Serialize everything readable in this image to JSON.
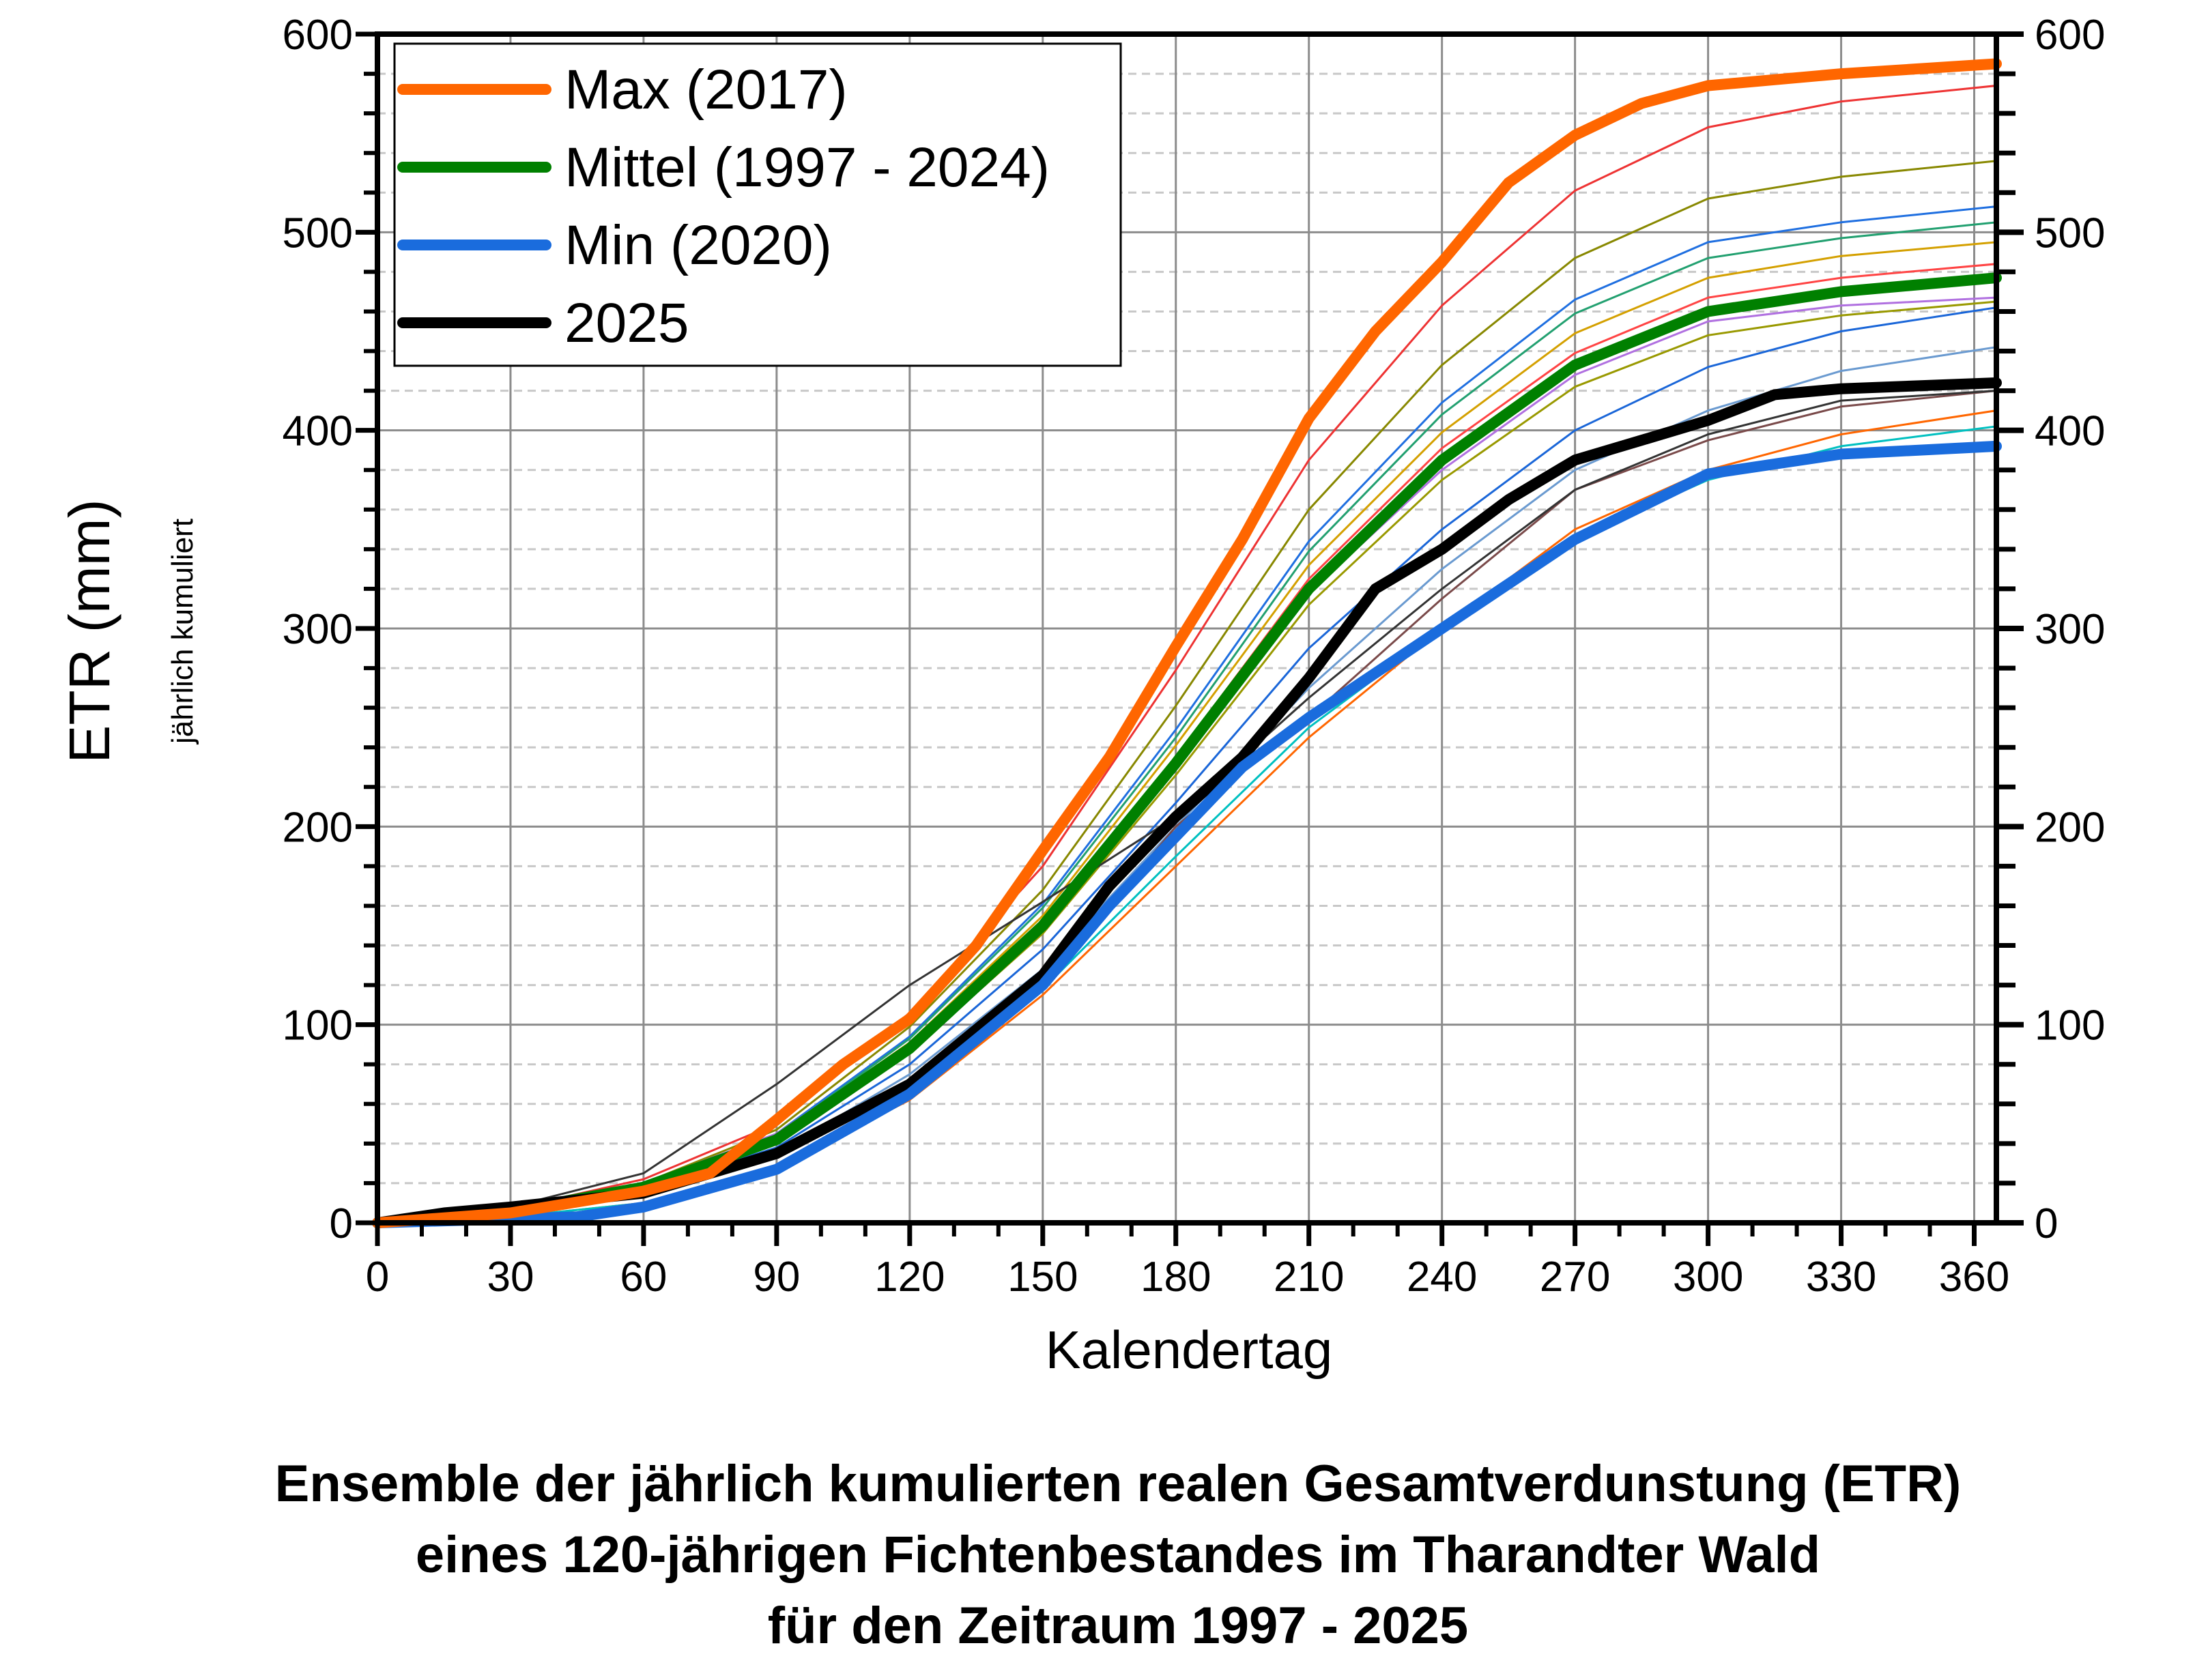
{
  "chart_data": {
    "type": "line",
    "title_lines": [
      "Ensemble der jährlich kumulierten realen Gesamtverdunstung (ETR)",
      "eines 120-jährigen Fichtenbestandes im Tharandter Wald",
      "für den Zeitraum 1997 - 2025"
    ],
    "xlabel": "Kalendertag",
    "ylabel": "ETR (mm)",
    "ylabel_sub": "jährlich kumuliert",
    "xlim": [
      0,
      365
    ],
    "ylim": [
      0,
      600
    ],
    "xticks": [
      "0",
      "30",
      "60",
      "90",
      "120",
      "150",
      "180",
      "210",
      "240",
      "270",
      "300",
      "330",
      "360"
    ],
    "yticks": [
      "0",
      "100",
      "200",
      "300",
      "400",
      "500",
      "600"
    ],
    "grid": true,
    "legend_position": "top-left",
    "x": [
      0,
      30,
      60,
      90,
      120,
      150,
      180,
      210,
      240,
      270,
      300,
      330,
      365
    ],
    "series": [
      {
        "name": "Max (2017)",
        "color": "#ff6600",
        "legend": true,
        "width": "thick",
        "x": [
          0,
          30,
          60,
          75,
          90,
          105,
          120,
          135,
          150,
          165,
          180,
          195,
          210,
          225,
          240,
          255,
          270,
          285,
          300,
          330,
          365
        ],
        "values": [
          0,
          5,
          16,
          25,
          52,
          80,
          103,
          140,
          188,
          235,
          291,
          345,
          406,
          450,
          485,
          525,
          549,
          565,
          574,
          580,
          585
        ]
      },
      {
        "name": "Mittel (1997 - 2024)",
        "color": "#008000",
        "legend": true,
        "width": "thick",
        "values": [
          0,
          6,
          18,
          42,
          88,
          150,
          232,
          320,
          385,
          433,
          460,
          470,
          477
        ]
      },
      {
        "name": "Min (2020)",
        "color": "#1a6cdd",
        "legend": true,
        "width": "thick",
        "x": [
          0,
          30,
          45,
          60,
          90,
          120,
          150,
          165,
          180,
          195,
          210,
          240,
          270,
          300,
          330,
          365
        ],
        "values": [
          0,
          2,
          3,
          8,
          27,
          65,
          120,
          160,
          195,
          230,
          255,
          300,
          345,
          378,
          388,
          392
        ]
      },
      {
        "name": "2025",
        "color": "#000000",
        "legend": true,
        "width": "thick",
        "x": [
          0,
          15,
          30,
          60,
          90,
          120,
          150,
          165,
          180,
          195,
          210,
          225,
          240,
          255,
          270,
          285,
          300,
          315,
          330,
          365
        ],
        "values": [
          0,
          5,
          8,
          15,
          35,
          70,
          125,
          170,
          205,
          235,
          275,
          320,
          340,
          365,
          385,
          395,
          405,
          418,
          421,
          424
        ]
      },
      {
        "name": "",
        "color": "#ee3333",
        "legend": false,
        "values": [
          0,
          7,
          22,
          50,
          106,
          180,
          279,
          385,
          463,
          521,
          553,
          566,
          574
        ]
      },
      {
        "name": "",
        "color": "#888800",
        "legend": false,
        "values": [
          0,
          7,
          20,
          47,
          99,
          168,
          261,
          360,
          433,
          487,
          517,
          528,
          536
        ]
      },
      {
        "name": "",
        "color": "#1f6fe0",
        "legend": false,
        "values": [
          0,
          6,
          19,
          45,
          94,
          161,
          249,
          344,
          414,
          466,
          495,
          505,
          513
        ]
      },
      {
        "name": "",
        "color": "#22a070",
        "legend": false,
        "values": [
          0,
          6,
          19,
          44,
          93,
          159,
          245,
          339,
          408,
          459,
          487,
          497,
          505
        ]
      },
      {
        "name": "",
        "color": "#d4a000",
        "legend": false,
        "values": [
          0,
          6,
          19,
          44,
          91,
          155,
          241,
          332,
          399,
          449,
          477,
          488,
          495
        ]
      },
      {
        "name": "",
        "color": "#ff4444",
        "legend": false,
        "values": [
          0,
          6,
          18,
          43,
          89,
          152,
          235,
          325,
          391,
          439,
          467,
          477,
          484
        ]
      },
      {
        "name": "",
        "color": "#b070e0",
        "legend": false,
        "values": [
          0,
          7,
          20,
          45,
          90,
          150,
          230,
          318,
          380,
          428,
          455,
          463,
          467
        ]
      },
      {
        "name": "",
        "color": "#999900",
        "legend": false,
        "values": [
          0,
          6,
          18,
          41,
          86,
          146,
          226,
          312,
          375,
          422,
          448,
          458,
          465
        ]
      },
      {
        "name": "",
        "color": "#1a66d8",
        "legend": false,
        "values": [
          0,
          6,
          17,
          38,
          80,
          138,
          212,
          290,
          350,
          400,
          432,
          450,
          462
        ]
      },
      {
        "name": "",
        "color": "#6a9ad0",
        "legend": false,
        "values": [
          0,
          5,
          15,
          35,
          75,
          128,
          200,
          270,
          330,
          380,
          410,
          430,
          442
        ]
      },
      {
        "name": "",
        "color": "#7a4a4a",
        "legend": false,
        "values": [
          0,
          5,
          14,
          33,
          70,
          120,
          200,
          255,
          315,
          370,
          395,
          412,
          420
        ]
      },
      {
        "name": "",
        "color": "#ff6600",
        "legend": false,
        "values": [
          0,
          3,
          10,
          28,
          62,
          115,
          180,
          245,
          300,
          350,
          380,
          398,
          410
        ]
      },
      {
        "name": "",
        "color": "#00c0c0",
        "legend": false,
        "values": [
          0,
          3,
          10,
          28,
          64,
          118,
          185,
          250,
          300,
          345,
          375,
          392,
          402
        ]
      },
      {
        "name": "",
        "color": "#333333",
        "legend": false,
        "values": [
          0,
          8,
          25,
          70,
          120,
          162,
          205,
          265,
          320,
          370,
          398,
          415,
          420
        ]
      }
    ]
  }
}
